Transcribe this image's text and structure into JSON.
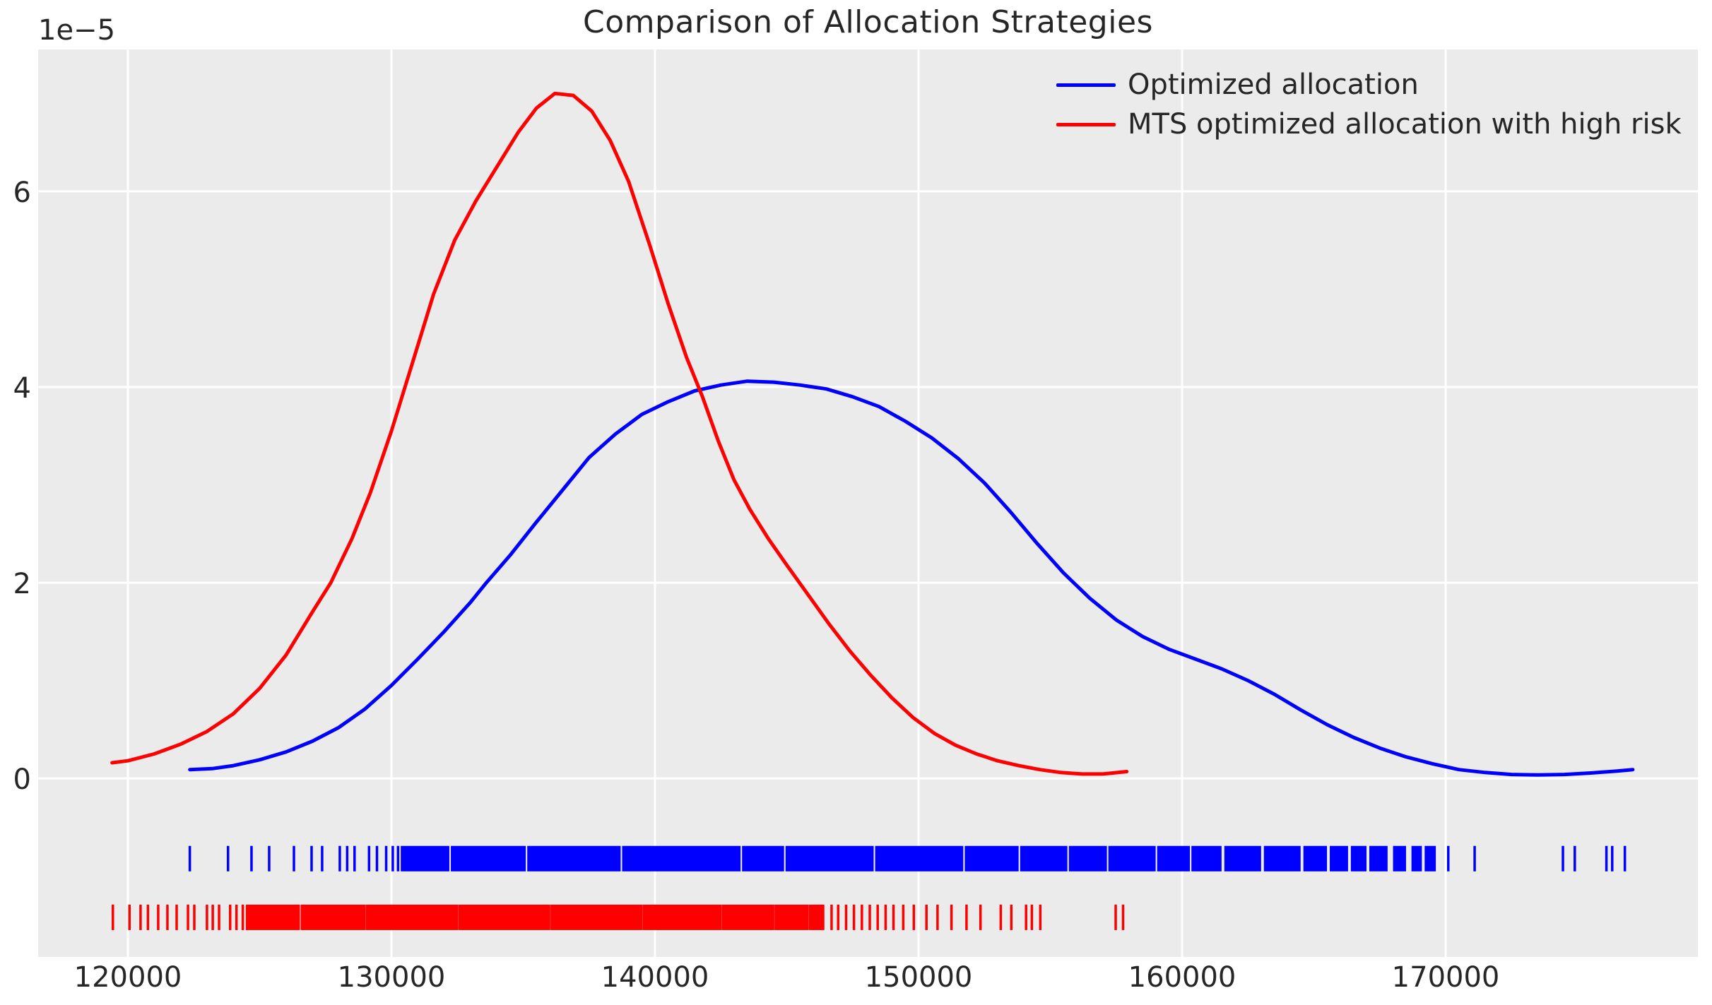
{
  "chart": {
    "background_color": "#ffffff",
    "plot_background_color": "#ebebeb",
    "grid_color": "#ffffff",
    "text_color": "#262626",
    "curve_line_width": 5,
    "grid_line_width": 3,
    "rug_tick_width": 3.5
  },
  "chart_data": {
    "type": "line",
    "title": "Comparison of Allocation Strategies",
    "xlabel": "",
    "ylabel": "",
    "grid": true,
    "legend_position": "upper right",
    "y_offset_text": "1e−5",
    "xlim": [
      116595,
      179570
    ],
    "ylim_1e5": [
      -1.825,
      7.45
    ],
    "x_ticks": [
      {
        "value": 120000,
        "label": "120000"
      },
      {
        "value": 130000,
        "label": "130000"
      },
      {
        "value": 140000,
        "label": "140000"
      },
      {
        "value": 150000,
        "label": "150000"
      },
      {
        "value": 160000,
        "label": "160000"
      },
      {
        "value": 170000,
        "label": "170000"
      }
    ],
    "y_ticks_1e5": [
      {
        "value": 0,
        "label": "0"
      },
      {
        "value": 2,
        "label": "2"
      },
      {
        "value": 4,
        "label": "4"
      },
      {
        "value": 6,
        "label": "6"
      }
    ],
    "series": [
      {
        "name": "Optimized allocation",
        "color": "#0000ff",
        "kind": "kde-density-with-rug",
        "peak": {
          "x": 143500,
          "y_1e5": 4.06
        },
        "points": [
          [
            122350,
            0.09
          ],
          [
            123200,
            0.1
          ],
          [
            124000,
            0.13
          ],
          [
            125000,
            0.19
          ],
          [
            126000,
            0.27
          ],
          [
            127000,
            0.38
          ],
          [
            128000,
            0.52
          ],
          [
            129000,
            0.71
          ],
          [
            130000,
            0.95
          ],
          [
            131000,
            1.22
          ],
          [
            132000,
            1.5
          ],
          [
            133000,
            1.8
          ],
          [
            133600,
            2.0
          ],
          [
            134500,
            2.28
          ],
          [
            135500,
            2.62
          ],
          [
            136500,
            2.95
          ],
          [
            137500,
            3.28
          ],
          [
            138500,
            3.52
          ],
          [
            139500,
            3.72
          ],
          [
            140500,
            3.85
          ],
          [
            141500,
            3.96
          ],
          [
            142500,
            4.02
          ],
          [
            143500,
            4.06
          ],
          [
            144500,
            4.05
          ],
          [
            145500,
            4.02
          ],
          [
            146500,
            3.98
          ],
          [
            147500,
            3.9
          ],
          [
            148500,
            3.8
          ],
          [
            149500,
            3.65
          ],
          [
            150500,
            3.48
          ],
          [
            151500,
            3.27
          ],
          [
            152500,
            3.02
          ],
          [
            153500,
            2.72
          ],
          [
            154500,
            2.4
          ],
          [
            155500,
            2.1
          ],
          [
            156500,
            1.84
          ],
          [
            157500,
            1.62
          ],
          [
            158500,
            1.45
          ],
          [
            159500,
            1.32
          ],
          [
            160500,
            1.22
          ],
          [
            161500,
            1.12
          ],
          [
            162500,
            1.0
          ],
          [
            163500,
            0.86
          ],
          [
            164500,
            0.7
          ],
          [
            165500,
            0.55
          ],
          [
            166500,
            0.42
          ],
          [
            167500,
            0.31
          ],
          [
            168500,
            0.22
          ],
          [
            169500,
            0.15
          ],
          [
            170500,
            0.09
          ],
          [
            171500,
            0.06
          ],
          [
            172500,
            0.04
          ],
          [
            173500,
            0.035
          ],
          [
            174500,
            0.04
          ],
          [
            175500,
            0.055
          ],
          [
            176500,
            0.075
          ],
          [
            177100,
            0.09
          ]
        ],
        "rug": {
          "band_1e5": [
            -0.69,
            -0.95
          ],
          "ticks": [
            122350,
            123800,
            124690,
            125360,
            126300,
            126970,
            127370,
            128040,
            128320,
            128600,
            129150,
            129450,
            129800,
            130050,
            130250,
            170100,
            171100,
            174450,
            174900,
            176100,
            176320,
            176800
          ],
          "solid_segments": [
            [
              130400,
              132150
            ],
            [
              132300,
              135050
            ],
            [
              135200,
              138650
            ],
            [
              138800,
              143200
            ],
            [
              143350,
              144850
            ],
            [
              145000,
              148250
            ],
            [
              148400,
              151650
            ],
            [
              151800,
              153750
            ],
            [
              153900,
              155600
            ],
            [
              155750,
              157100
            ],
            [
              157250,
              158950
            ],
            [
              159100,
              160250
            ],
            [
              160400,
              161450
            ],
            [
              161650,
              162950
            ],
            [
              163150,
              164450
            ],
            [
              164650,
              165450
            ],
            [
              165650,
              166250
            ],
            [
              166450,
              166950
            ],
            [
              167150,
              167750
            ],
            [
              168050,
              168450
            ],
            [
              168750,
              169050
            ],
            [
              169250,
              169580
            ]
          ]
        }
      },
      {
        "name": "MTS optimized allocation with high risk",
        "color": "#ff0000",
        "kind": "kde-density-with-rug",
        "peak": {
          "x": 136200,
          "y_1e5": 7.0
        },
        "points": [
          [
            119400,
            0.16
          ],
          [
            120000,
            0.18
          ],
          [
            121000,
            0.25
          ],
          [
            122000,
            0.35
          ],
          [
            123000,
            0.48
          ],
          [
            124000,
            0.66
          ],
          [
            125000,
            0.92
          ],
          [
            126000,
            1.26
          ],
          [
            127000,
            1.7
          ],
          [
            127700,
            2.0
          ],
          [
            128500,
            2.45
          ],
          [
            129200,
            2.92
          ],
          [
            130000,
            3.55
          ],
          [
            130800,
            4.25
          ],
          [
            131600,
            4.95
          ],
          [
            132400,
            5.5
          ],
          [
            133200,
            5.9
          ],
          [
            134000,
            6.25
          ],
          [
            134800,
            6.6
          ],
          [
            135500,
            6.85
          ],
          [
            136200,
            7.0
          ],
          [
            136900,
            6.98
          ],
          [
            137600,
            6.82
          ],
          [
            138300,
            6.52
          ],
          [
            139000,
            6.1
          ],
          [
            139800,
            5.45
          ],
          [
            140500,
            4.85
          ],
          [
            141200,
            4.3
          ],
          [
            141800,
            3.9
          ],
          [
            142400,
            3.45
          ],
          [
            143000,
            3.05
          ],
          [
            143600,
            2.75
          ],
          [
            144300,
            2.45
          ],
          [
            145000,
            2.18
          ],
          [
            145800,
            1.88
          ],
          [
            146600,
            1.58
          ],
          [
            147400,
            1.3
          ],
          [
            148200,
            1.05
          ],
          [
            149000,
            0.82
          ],
          [
            149800,
            0.62
          ],
          [
            150600,
            0.46
          ],
          [
            151400,
            0.34
          ],
          [
            152200,
            0.25
          ],
          [
            153000,
            0.18
          ],
          [
            153800,
            0.13
          ],
          [
            154600,
            0.09
          ],
          [
            155400,
            0.06
          ],
          [
            156200,
            0.045
          ],
          [
            157000,
            0.045
          ],
          [
            157900,
            0.07
          ]
        ],
        "rug": {
          "band_1e5": [
            -1.29,
            -1.55
          ],
          "ticks": [
            119430,
            120060,
            120480,
            120760,
            121150,
            121500,
            121850,
            122280,
            122520,
            123000,
            123220,
            123460,
            123880,
            124120,
            124360,
            146700,
            146950,
            147250,
            147550,
            147850,
            148150,
            148450,
            148750,
            149050,
            149420,
            149820,
            150300,
            150720,
            151250,
            151820,
            152350,
            153120,
            153520,
            154080,
            154300,
            154620,
            157480,
            157760
          ],
          "solid_segments": [
            [
              124520,
              126480
            ],
            [
              126600,
              128980
            ],
            [
              129080,
              132480
            ],
            [
              132580,
              135980
            ],
            [
              136080,
              139480
            ],
            [
              139580,
              142480
            ],
            [
              142580,
              144480
            ],
            [
              144580,
              145780
            ],
            [
              145880,
              146380
            ]
          ]
        }
      }
    ]
  }
}
